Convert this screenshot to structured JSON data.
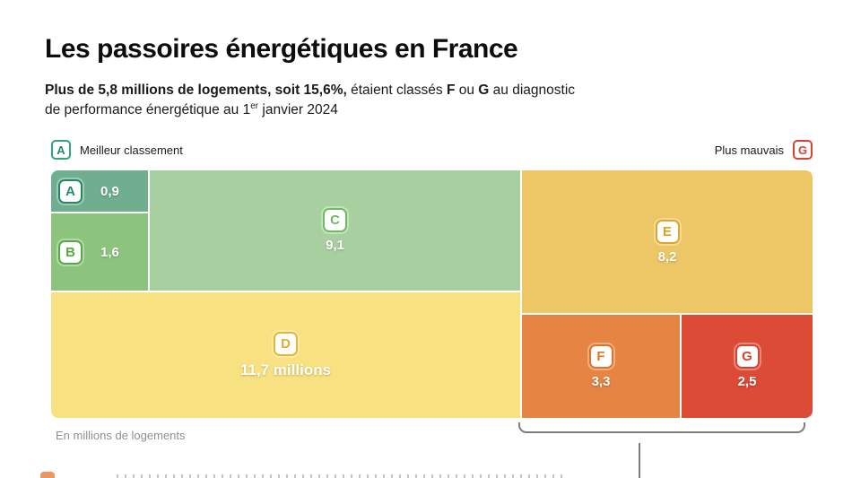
{
  "title": "Les passoires énergétiques en France",
  "subtitle": {
    "seg_bold": "Plus de 5,8 millions de logements, soit 15,6%,",
    "seg1": " étaient classés ",
    "seg_f": "F",
    "seg2": " ou ",
    "seg_g": "G",
    "seg3": " au diagnostic",
    "line2a": "de performance énergétique au 1",
    "sup": "er",
    "line2b": " janvier 2024"
  },
  "legend": {
    "best_badge": "A",
    "best_label": "Meilleur classement",
    "worst_label": "Plus mauvais",
    "worst_badge": "G"
  },
  "footnote": "En millions de logements",
  "chart_data": {
    "type": "treemap",
    "title": "Les passoires énergétiques en France",
    "unit": "millions de logements",
    "categories": [
      "A",
      "B",
      "C",
      "D",
      "E",
      "F",
      "G"
    ],
    "values": [
      0.9,
      1.6,
      9.1,
      11.7,
      8.2,
      3.3,
      2.5
    ],
    "value_labels": [
      "0,9",
      "1,6",
      "9,1",
      "11,7 millions",
      "8,2",
      "3,3",
      "2,5"
    ],
    "colors": {
      "A": "#6FAE8F",
      "B": "#8CC47E",
      "C": "#A8CF9F",
      "D": "#F8E181",
      "E": "#EDC766",
      "F": "#E58443",
      "G": "#DB4B35"
    },
    "legend_best": "Meilleur classement",
    "legend_worst": "Plus mauvais",
    "highlight_group": [
      "F",
      "G"
    ]
  }
}
